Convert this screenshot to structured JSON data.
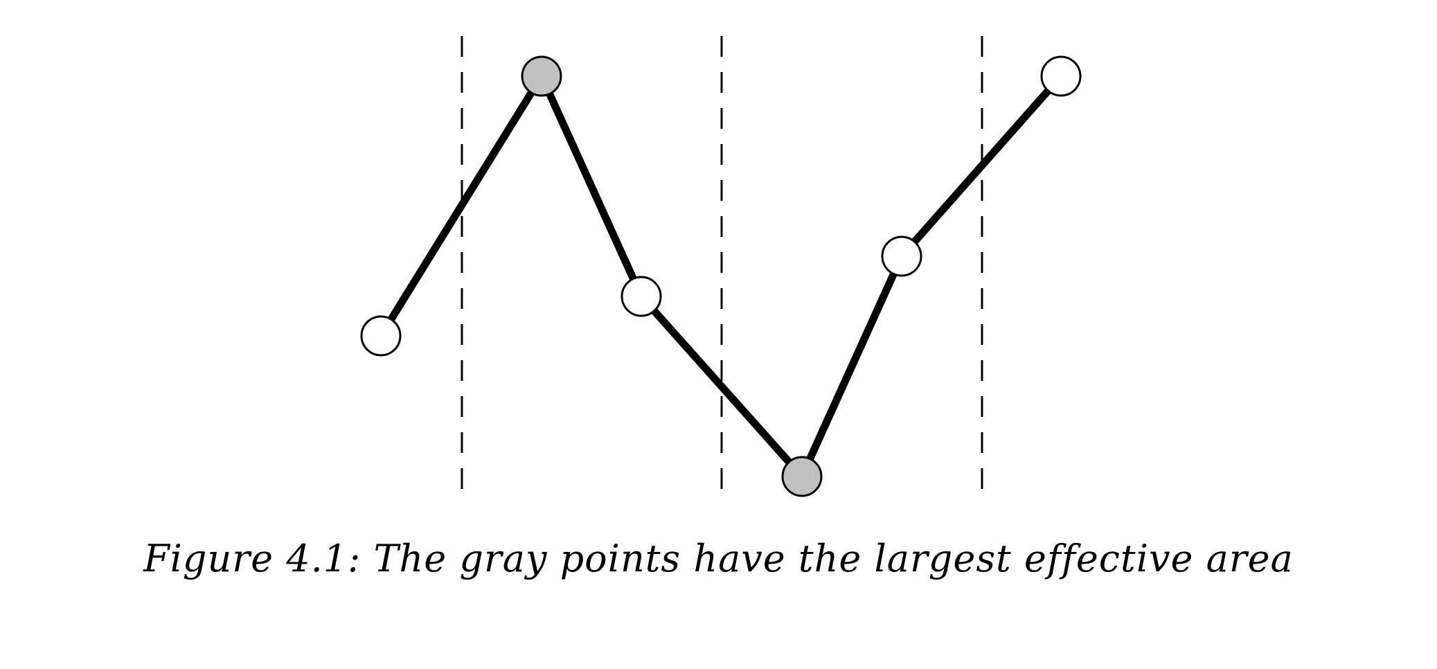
{
  "figure": {
    "caption": "Figure 4.1: The gray points have the largest effective area",
    "points": [
      {
        "id": "p1",
        "highlighted": false
      },
      {
        "id": "p2",
        "highlighted": true
      },
      {
        "id": "p3",
        "highlighted": false
      },
      {
        "id": "p4",
        "highlighted": true
      },
      {
        "id": "p5",
        "highlighted": false
      },
      {
        "id": "p6",
        "highlighted": false
      }
    ],
    "colors": {
      "line": "#000000",
      "point_fill": "#ffffff",
      "highlight_fill": "#c0c0c0",
      "divider": "#000000"
    }
  }
}
